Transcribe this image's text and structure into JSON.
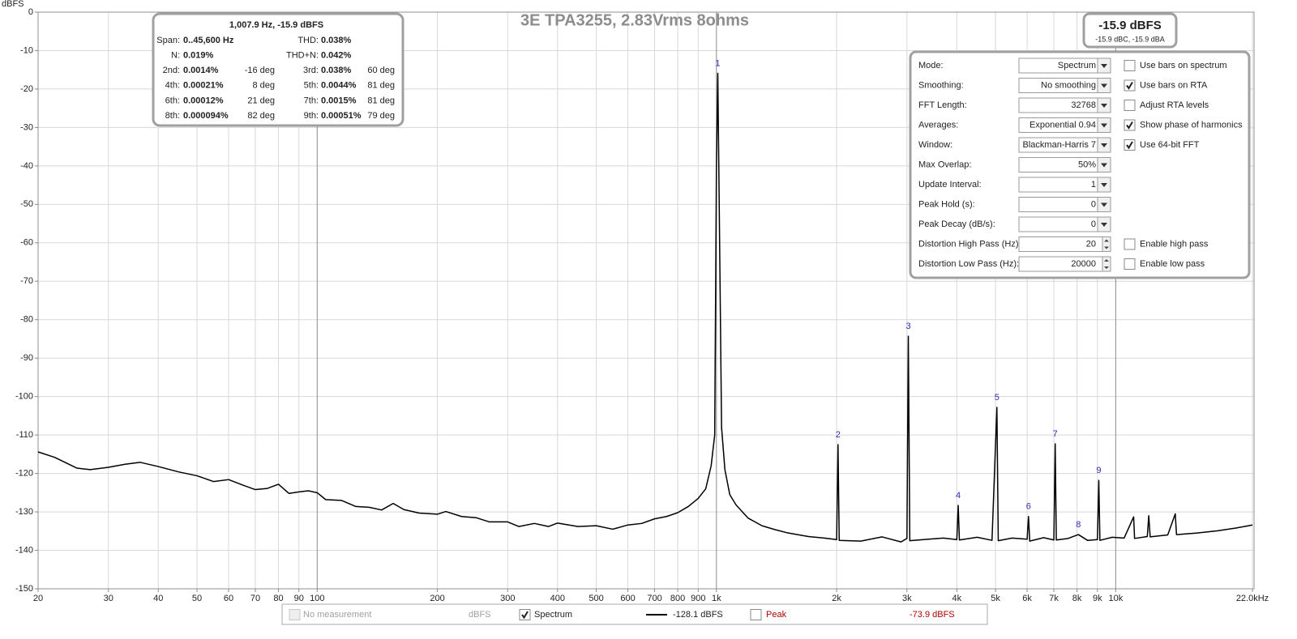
{
  "chart_data": {
    "type": "line",
    "title": "3E TPA3255, 2.83Vrms 8ohms",
    "ylabel": "dBFS",
    "xscale": "log",
    "grid": true,
    "xlim": [
      20,
      22000
    ],
    "ylim": [
      -150,
      0
    ],
    "xticks": [
      20,
      30,
      40,
      50,
      60,
      70,
      80,
      90,
      100,
      200,
      300,
      400,
      500,
      600,
      700,
      800,
      900,
      {
        "value": 1000,
        "label": "1k"
      },
      {
        "value": 2000,
        "label": "2k"
      },
      {
        "value": 3000,
        "label": "3k"
      },
      {
        "value": 4000,
        "label": "4k"
      },
      {
        "value": 5000,
        "label": "5k"
      },
      {
        "value": 6000,
        "label": "6k"
      },
      {
        "value": 7000,
        "label": "7k"
      },
      {
        "value": 8000,
        "label": "8k"
      },
      {
        "value": 9000,
        "label": "9k"
      },
      {
        "value": 10000,
        "label": "10k"
      },
      {
        "value": 22000,
        "label": "22.0kHz"
      }
    ],
    "yticks": [
      0,
      -10,
      -20,
      -30,
      -40,
      -50,
      -60,
      -70,
      -80,
      -90,
      -100,
      -110,
      -120,
      -130,
      -140,
      -150
    ],
    "x": [
      20,
      22,
      25,
      27,
      30,
      33,
      36,
      40,
      45,
      50,
      55,
      60,
      65,
      70,
      75,
      80,
      85,
      90,
      95,
      100,
      105,
      115,
      125,
      135,
      145,
      155,
      165,
      180,
      200,
      210,
      230,
      250,
      270,
      300,
      320,
      350,
      380,
      400,
      450,
      500,
      550,
      600,
      650,
      700,
      750,
      800,
      850,
      900,
      940,
      970,
      990,
      1000,
      1007.9,
      1015,
      1030,
      1050,
      1080,
      1120,
      1200,
      1300,
      1400,
      1500,
      1700,
      1900,
      2000,
      2016,
      2030,
      2300,
      2600,
      2900,
      3000,
      3024,
      3050,
      3400,
      3700,
      4000,
      4032,
      4060,
      4500,
      4900,
      5040,
      5080,
      5500,
      6000,
      6048,
      6090,
      6600,
      7000,
      7055,
      7100,
      7600,
      8063,
      8500,
      9000,
      9071,
      9130,
      9800,
      10500,
      11090,
      11150,
      12000,
      12100,
      12200,
      13500,
      14100,
      14200,
      16000,
      18000,
      20000,
      22000
    ],
    "series": [
      {
        "name": "Spectrum",
        "color": "#000000",
        "values": [
          -114.4,
          -115.8,
          -118.6,
          -119,
          -118.4,
          -117.6,
          -117.1,
          -118.2,
          -119.6,
          -120.6,
          -122.1,
          -121.6,
          -123,
          -124.2,
          -123.9,
          -122.8,
          -125.2,
          -124.8,
          -124.5,
          -125,
          -126.8,
          -127,
          -128.6,
          -128.8,
          -129.5,
          -127.8,
          -129.4,
          -130.3,
          -130.6,
          -129.9,
          -131.2,
          -131.5,
          -132.6,
          -132.6,
          -133.8,
          -133,
          -133.8,
          -132.9,
          -133.8,
          -133.6,
          -134.5,
          -133.4,
          -133,
          -131.8,
          -131.2,
          -130.2,
          -128.6,
          -126.5,
          -124,
          -118,
          -110,
          -40,
          -15.9,
          -45,
          -108,
          -119,
          -125.5,
          -128.2,
          -131.6,
          -133.6,
          -134.6,
          -135.4,
          -136.4,
          -136.9,
          -137.2,
          -112.5,
          -137.4,
          -137.6,
          -136.5,
          -137.8,
          -136.9,
          -84.3,
          -137.5,
          -137.1,
          -136.8,
          -137.2,
          -128.3,
          -137.3,
          -136.6,
          -137.4,
          -102.8,
          -137.5,
          -136.8,
          -137.1,
          -131.2,
          -137.6,
          -136.7,
          -137.3,
          -112.3,
          -137.3,
          -136.9,
          -135.9,
          -137.4,
          -137.2,
          -121.8,
          -137.4,
          -136.6,
          -136.8,
          -131.3,
          -136.9,
          -136.4,
          -131,
          -136.5,
          -136,
          -130.5,
          -135.9,
          -135.5,
          -134.9,
          -134.2,
          -133.4
        ]
      }
    ],
    "markers": [
      {
        "label": 1,
        "x": 1007.9,
        "y": -15.9
      },
      {
        "label": 2,
        "x": 2016,
        "y": -112.5
      },
      {
        "label": 3,
        "x": 3024,
        "y": -84.3
      },
      {
        "label": 4,
        "x": 4032,
        "y": -128.3
      },
      {
        "label": 5,
        "x": 5040,
        "y": -102.8
      },
      {
        "label": 6,
        "x": 6048,
        "y": -131.2
      },
      {
        "label": 7,
        "x": 7055,
        "y": -112.3
      },
      {
        "label": 8,
        "x": 8063,
        "y": -135.9
      },
      {
        "label": 9,
        "x": 9071,
        "y": -121.8
      }
    ],
    "marker_color": "#2b2bb0"
  },
  "info_box": {
    "header": "1,007.9 Hz, -15.9 dBFS",
    "rows": [
      [
        {
          "label": "Span:",
          "value": "0..45,600 Hz"
        },
        {
          "label": "THD:",
          "value": "0.038%"
        }
      ],
      [
        {
          "label": "N:",
          "value": "0.019%"
        },
        {
          "label": "THD+N:",
          "value": "0.042%"
        }
      ],
      [
        {
          "label": "2nd:",
          "value": "0.0014%",
          "phase": "-16 deg"
        },
        {
          "label": "3rd:",
          "value": "0.038%",
          "phase": "60 deg"
        }
      ],
      [
        {
          "label": "4th:",
          "value": "0.00021%",
          "phase": "8 deg"
        },
        {
          "label": "5th:",
          "value": "0.0044%",
          "phase": "81 deg"
        }
      ],
      [
        {
          "label": "6th:",
          "value": "0.00012%",
          "phase": "21 deg"
        },
        {
          "label": "7th:",
          "value": "0.0015%",
          "phase": "81 deg"
        }
      ],
      [
        {
          "label": "8th:",
          "value": "0.000094%",
          "phase": "82 deg"
        },
        {
          "label": "9th:",
          "value": "0.00051%",
          "phase": "79 deg"
        }
      ]
    ]
  },
  "readout": {
    "main": "-15.9 dBFS",
    "sub": "-15.9 dBC, -15.9 dBA"
  },
  "settings": [
    {
      "label": "Mode:",
      "value": "Spectrum",
      "control": "dropdown",
      "option": {
        "label": "Use bars on spectrum",
        "checked": false
      }
    },
    {
      "label": "Smoothing:",
      "value": "No  smoothing",
      "control": "dropdown",
      "option": {
        "label": "Use bars on RTA",
        "checked": true
      }
    },
    {
      "label": "FFT Length:",
      "value": "32768",
      "control": "dropdown",
      "option": {
        "label": "Adjust RTA levels",
        "checked": false
      }
    },
    {
      "label": "Averages:",
      "value": "Exponential 0.94",
      "control": "dropdown",
      "option": {
        "label": "Show phase of harmonics",
        "checked": true
      }
    },
    {
      "label": "Window:",
      "value": "Blackman-Harris 7",
      "control": "dropdown",
      "option": {
        "label": "Use 64-bit FFT",
        "checked": true
      }
    },
    {
      "label": "Max Overlap:",
      "value": "50%",
      "control": "dropdown"
    },
    {
      "label": "Update Interval:",
      "value": "1",
      "control": "dropdown"
    },
    {
      "label": "Peak Hold (s):",
      "value": "0",
      "control": "dropdown"
    },
    {
      "label": "Peak Decay (dB/s):",
      "value": "0",
      "control": "dropdown"
    },
    {
      "label": "Distortion High Pass (Hz):",
      "value": "20",
      "control": "spin",
      "option": {
        "label": "Enable high pass",
        "checked": false
      }
    },
    {
      "label": "Distortion Low Pass (Hz):",
      "value": "20000",
      "control": "spin",
      "option": {
        "label": "Enable low pass",
        "checked": false
      }
    }
  ],
  "legend_bar": {
    "no_measurement": {
      "label": "No measurement",
      "unit": "dBFS"
    },
    "spectrum_checked": true,
    "spectrum_readout": "-128.1 dBFS",
    "peak": {
      "label": "Peak",
      "readout": "-73.9 dBFS",
      "checked": false,
      "color": "#b00000"
    }
  }
}
